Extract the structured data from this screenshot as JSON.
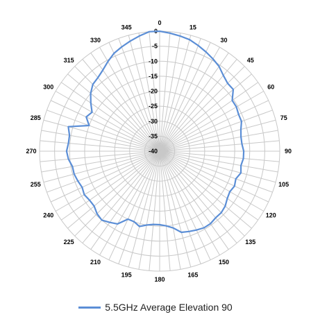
{
  "chart_data": {
    "type": "polar-line",
    "angle_tick_labels": [
      "0",
      "15",
      "30",
      "45",
      "60",
      "75",
      "90",
      "105",
      "120",
      "135",
      "150",
      "165",
      "180",
      "195",
      "210",
      "225",
      "240",
      "255",
      "270",
      "285",
      "300",
      "315",
      "330",
      "345"
    ],
    "radial_tick_labels": [
      "0",
      "-5",
      "-10",
      "-15",
      "-20",
      "-25",
      "-30",
      "-35",
      "-40"
    ],
    "rlim": [
      -40,
      0
    ],
    "angle_step": 15,
    "minor_angle_step": 5,
    "grid": true,
    "legend_position": "bottom",
    "series": [
      {
        "name": "5.5GHz Average Elevation 90",
        "color": "#5b8ed6",
        "angles": [
          0,
          5,
          10,
          15,
          20,
          25,
          30,
          35,
          40,
          45,
          50,
          55,
          60,
          65,
          70,
          75,
          80,
          85,
          90,
          95,
          100,
          105,
          110,
          115,
          120,
          125,
          130,
          135,
          140,
          145,
          150,
          155,
          160,
          165,
          170,
          175,
          180,
          185,
          190,
          195,
          200,
          205,
          210,
          215,
          220,
          225,
          230,
          235,
          240,
          245,
          250,
          255,
          260,
          265,
          270,
          275,
          280,
          285,
          290,
          295,
          300,
          305,
          310,
          315,
          320,
          325,
          330,
          335,
          340,
          345,
          350,
          355
        ],
        "values": [
          0,
          -0.5,
          -1,
          -1.5,
          -2.5,
          -3.5,
          -4.5,
          -5.5,
          -7,
          -8,
          -8,
          -10.5,
          -10.5,
          -11,
          -11,
          -12,
          -12.5,
          -12.5,
          -12,
          -12,
          -12.5,
          -12,
          -13,
          -12.5,
          -13,
          -12.5,
          -11.5,
          -11,
          -11,
          -10.5,
          -10.5,
          -11,
          -11.5,
          -12,
          -14,
          -15,
          -15.5,
          -15.5,
          -15,
          -14,
          -15,
          -15,
          -12,
          -11,
          -10,
          -10.5,
          -11.5,
          -11.5,
          -11,
          -11.5,
          -11,
          -10.5,
          -10.5,
          -9.5,
          -9,
          -9.5,
          -9.5,
          -8.5,
          -15,
          -13,
          -14,
          -12,
          -10,
          -8.5,
          -8,
          -7,
          -5.5,
          -4,
          -3,
          -2,
          -1,
          0
        ]
      }
    ]
  }
}
